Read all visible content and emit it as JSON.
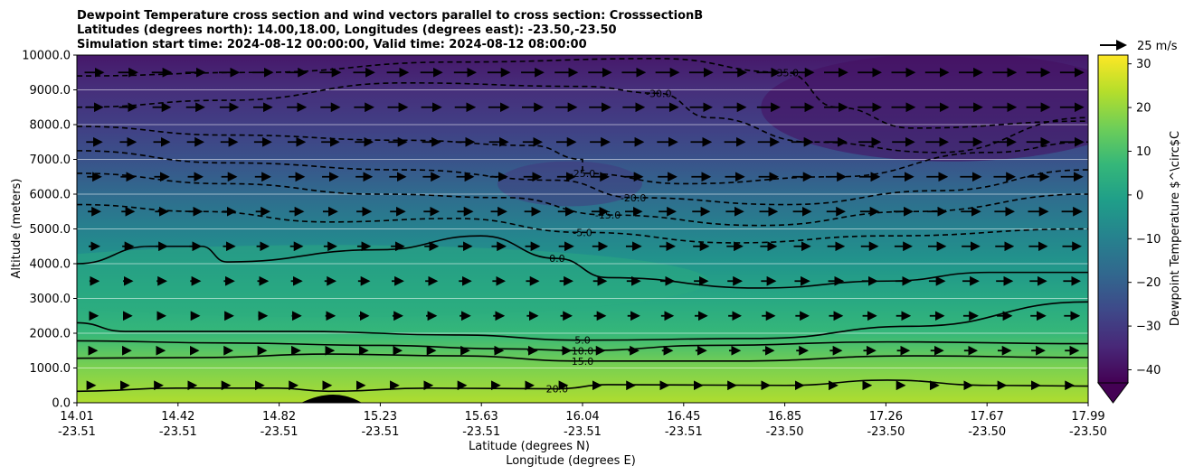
{
  "figure": {
    "title_lines": [
      "Dewpoint Temperature cross section and wind vectors parallel to cross section: CrosssectionB",
      "Latitudes (degrees north): 14.00,18.00, Longitudes (degrees east): -23.50,-23.50",
      "Simulation start time: 2024-08-12 00:00:00, Valid time: 2024-08-12 08:00:00"
    ],
    "xlabel_lat": "Latitude (degrees N)",
    "xlabel_lon": "Longitude (degrees E)",
    "ylabel": "Altitude (meters)",
    "colorbar_label": "Dewpoint Temperature $^\\circ$C",
    "quiver_key_label": "25 m/s"
  },
  "colors": {
    "viridis": [
      "#440154",
      "#482878",
      "#3e4989",
      "#31688e",
      "#26828e",
      "#1f9e89",
      "#35b779",
      "#6ece58",
      "#b5de2b",
      "#fde725"
    ],
    "contour_line": "#000000",
    "grid": "#ffffff"
  },
  "chart_data": {
    "type": "heatmap",
    "x_ticks": [
      {
        "lat": "14.01",
        "lon": "-23.51"
      },
      {
        "lat": "14.42",
        "lon": "-23.51"
      },
      {
        "lat": "14.82",
        "lon": "-23.51"
      },
      {
        "lat": "15.23",
        "lon": "-23.51"
      },
      {
        "lat": "15.63",
        "lon": "-23.51"
      },
      {
        "lat": "16.04",
        "lon": "-23.51"
      },
      {
        "lat": "16.45",
        "lon": "-23.51"
      },
      {
        "lat": "16.85",
        "lon": "-23.50"
      },
      {
        "lat": "17.26",
        "lon": "-23.50"
      },
      {
        "lat": "17.67",
        "lon": "-23.50"
      },
      {
        "lat": "17.99",
        "lon": "-23.50"
      }
    ],
    "y_ticks": [
      "0.0",
      "1000.0",
      "2000.0",
      "3000.0",
      "4000.0",
      "5000.0",
      "6000.0",
      "7000.0",
      "8000.0",
      "9000.0",
      "10000.0"
    ],
    "ylim": [
      0,
      10000
    ],
    "xlim": [
      14.01,
      17.99
    ],
    "colorbar": {
      "ticks": [
        -40,
        -30,
        -20,
        -10,
        0,
        10,
        20,
        30
      ],
      "range": [
        -43,
        32
      ],
      "extend": "min"
    },
    "grid": "horizontal",
    "vertical_profile": [
      {
        "z": 0,
        "T": 23
      },
      {
        "z": 1000,
        "T": 17
      },
      {
        "z": 2000,
        "T": 7
      },
      {
        "z": 3000,
        "T": 2
      },
      {
        "z": 4000,
        "T": -4
      },
      {
        "z": 5000,
        "T": -10
      },
      {
        "z": 6000,
        "T": -17
      },
      {
        "z": 7000,
        "T": -24
      },
      {
        "z": 8000,
        "T": -29
      },
      {
        "z": 9000,
        "T": -33
      },
      {
        "z": 10000,
        "T": -38
      }
    ],
    "contours": [
      {
        "level": 20,
        "style": "solid",
        "label": "20.0",
        "points": [
          [
            14.01,
            330
          ],
          [
            14.4,
            420
          ],
          [
            14.8,
            420
          ],
          [
            15.0,
            330
          ],
          [
            15.4,
            420
          ],
          [
            15.9,
            400
          ],
          [
            16.1,
            520
          ],
          [
            16.8,
            500
          ],
          [
            17.2,
            650
          ],
          [
            17.6,
            500
          ],
          [
            17.99,
            480
          ]
        ]
      },
      {
        "level": 15,
        "style": "solid",
        "label": "15.0",
        "points": [
          [
            14.01,
            1280
          ],
          [
            14.5,
            1300
          ],
          [
            15.0,
            1400
          ],
          [
            15.5,
            1350
          ],
          [
            16.0,
            1200
          ],
          [
            16.6,
            1200
          ],
          [
            17.3,
            1350
          ],
          [
            17.99,
            1300
          ]
        ]
      },
      {
        "level": 10,
        "style": "solid",
        "label": "10.0",
        "points": [
          [
            14.01,
            1780
          ],
          [
            14.6,
            1720
          ],
          [
            15.2,
            1650
          ],
          [
            15.7,
            1550
          ],
          [
            16.0,
            1500
          ],
          [
            16.5,
            1650
          ],
          [
            17.2,
            1750
          ],
          [
            17.99,
            1700
          ]
        ]
      },
      {
        "level": 5,
        "style": "solid",
        "label": "5.0",
        "points": [
          [
            14.01,
            2300
          ],
          [
            14.2,
            2050
          ],
          [
            14.9,
            2050
          ],
          [
            15.5,
            1950
          ],
          [
            16.0,
            1800
          ],
          [
            16.7,
            1850
          ],
          [
            17.3,
            2200
          ],
          [
            17.99,
            2900
          ]
        ]
      },
      {
        "level": 0,
        "style": "solid",
        "label": "0.0",
        "points": [
          [
            14.01,
            4000
          ],
          [
            14.3,
            4500
          ],
          [
            14.5,
            4500
          ],
          [
            14.6,
            4050
          ],
          [
            15.2,
            4400
          ],
          [
            15.6,
            4800
          ],
          [
            15.9,
            4150
          ],
          [
            16.1,
            3600
          ],
          [
            16.7,
            3300
          ],
          [
            17.2,
            3500
          ],
          [
            17.6,
            3750
          ],
          [
            17.99,
            3750
          ]
        ]
      },
      {
        "level": -5,
        "style": "dashed",
        "label": "-5.0",
        "points": [
          [
            14.01,
            5700
          ],
          [
            14.5,
            5500
          ],
          [
            15.0,
            5200
          ],
          [
            15.5,
            5300
          ],
          [
            16.0,
            4900
          ],
          [
            16.6,
            4600
          ],
          [
            17.2,
            4800
          ],
          [
            17.99,
            5000
          ]
        ]
      },
      {
        "level": -15,
        "style": "dashed",
        "label": "-15.0",
        "points": [
          [
            14.01,
            6600
          ],
          [
            14.6,
            6300
          ],
          [
            15.2,
            6000
          ],
          [
            15.7,
            5900
          ],
          [
            16.1,
            5400
          ],
          [
            16.7,
            5100
          ],
          [
            17.3,
            5500
          ],
          [
            17.99,
            6000
          ]
        ]
      },
      {
        "level": -20,
        "style": "dashed",
        "label": "-20.0",
        "points": [
          [
            14.01,
            7250
          ],
          [
            14.6,
            6900
          ],
          [
            15.3,
            6700
          ],
          [
            15.9,
            6400
          ],
          [
            16.2,
            5900
          ],
          [
            16.8,
            5700
          ],
          [
            17.4,
            6100
          ],
          [
            17.99,
            6700
          ]
        ]
      },
      {
        "level": -25,
        "style": "dashed",
        "label": "-25.0",
        "points": [
          [
            14.01,
            7950
          ],
          [
            14.6,
            7700
          ],
          [
            15.3,
            7550
          ],
          [
            15.8,
            7400
          ],
          [
            16.0,
            7000
          ],
          [
            16.0,
            6600
          ],
          [
            16.4,
            6300
          ],
          [
            17.0,
            6500
          ],
          [
            17.6,
            7200
          ],
          [
            17.99,
            7500
          ]
        ]
      },
      {
        "level": -30,
        "style": "dashed",
        "label": "-30.0",
        "points": [
          [
            14.01,
            8500
          ],
          [
            14.6,
            8700
          ],
          [
            15.3,
            9200
          ],
          [
            16.0,
            9100
          ],
          [
            16.3,
            8900
          ],
          [
            16.5,
            8200
          ],
          [
            16.9,
            7500
          ],
          [
            17.4,
            7200
          ],
          [
            17.99,
            8200
          ]
        ]
      },
      {
        "level": -35,
        "style": "dashed",
        "label": "-35.0",
        "points": [
          [
            14.01,
            9400
          ],
          [
            14.7,
            9500
          ],
          [
            15.5,
            9800
          ],
          [
            16.3,
            9900
          ],
          [
            16.8,
            9500
          ],
          [
            17.0,
            8500
          ],
          [
            17.3,
            7900
          ],
          [
            17.99,
            8100
          ]
        ]
      }
    ]
  }
}
